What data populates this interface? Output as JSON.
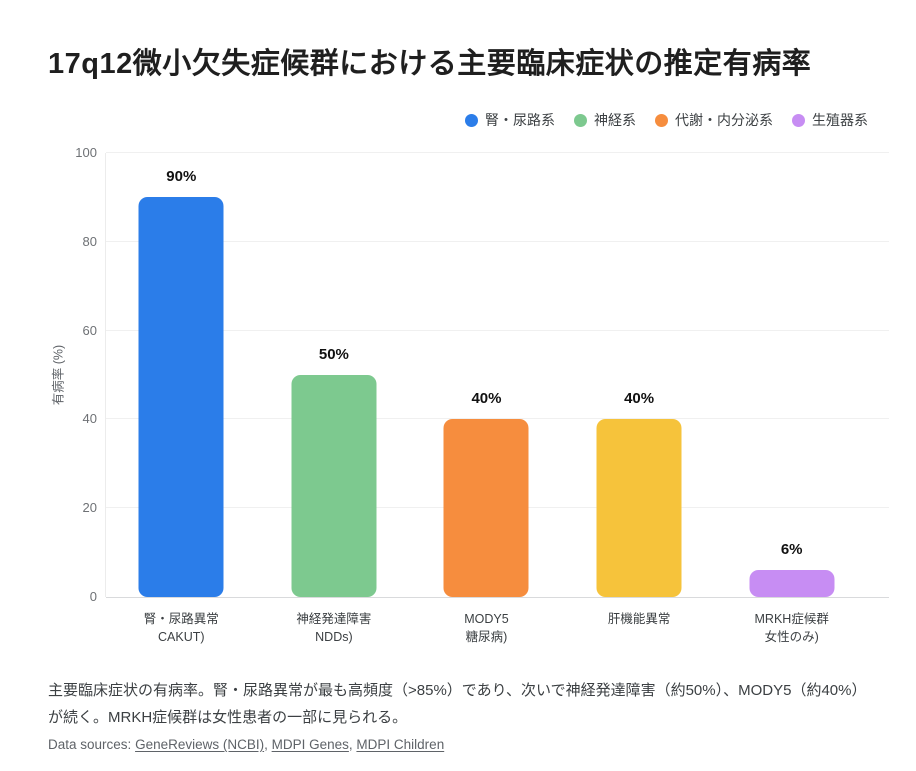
{
  "title": "17q12微小欠失症候群における主要臨床症状の推定有病率",
  "chart_data": {
    "type": "bar",
    "title": "17q12微小欠失症候群における主要臨床症状の推定有病率",
    "xlabel": "",
    "ylabel": "有病率 (%)",
    "ylim": [
      0,
      100
    ],
    "yticks": [
      0,
      20,
      40,
      60,
      80,
      100
    ],
    "grid": true,
    "legend_position": "top-right",
    "legend": [
      {
        "label": "腎・尿路系",
        "color": "#2b7de9"
      },
      {
        "label": "神経系",
        "color": "#7dc98f"
      },
      {
        "label": "代謝・内分泌系",
        "color": "#f68d3e"
      },
      {
        "label": "生殖器系",
        "color": "#c78df3"
      }
    ],
    "categories": [
      "腎・尿路異常 CAKUT)",
      "神経発達障害 NDDs)",
      "MODY5 糖尿病)",
      "肝機能異常",
      "MRKH症候群 女性のみ)"
    ],
    "values": [
      90,
      50,
      40,
      40,
      6
    ],
    "bars": [
      {
        "label_lines": [
          "腎・尿路異常",
          "CAKUT)"
        ],
        "value": 90,
        "value_label": "90%",
        "color": "#2b7de9",
        "group": "腎・尿路系"
      },
      {
        "label_lines": [
          "神経発達障害",
          "NDDs)"
        ],
        "value": 50,
        "value_label": "50%",
        "color": "#7dc98f",
        "group": "神経系"
      },
      {
        "label_lines": [
          "MODY5",
          "糖尿病)"
        ],
        "value": 40,
        "value_label": "40%",
        "color": "#f68d3e",
        "group": "代謝・内分泌系"
      },
      {
        "label_lines": [
          "肝機能異常"
        ],
        "value": 40,
        "value_label": "40%",
        "color": "#f6c33b",
        "group": "代謝・内分泌系"
      },
      {
        "label_lines": [
          "MRKH症候群",
          "女性のみ)"
        ],
        "value": 6,
        "value_label": "6%",
        "color": "#c78df3",
        "group": "生殖器系"
      }
    ]
  },
  "caption": "主要臨床症状の有病率。腎・尿路異常が最も高頻度（>85%）であり、次いで神経発達障害（約50%）、MODY5（約40%）が続く。MRKH症候群は女性患者の一部に見られる。",
  "sources": {
    "prefix": "Data sources:",
    "links": [
      "GeneReviews (NCBI)",
      "MDPI Genes",
      "MDPI Children"
    ]
  }
}
